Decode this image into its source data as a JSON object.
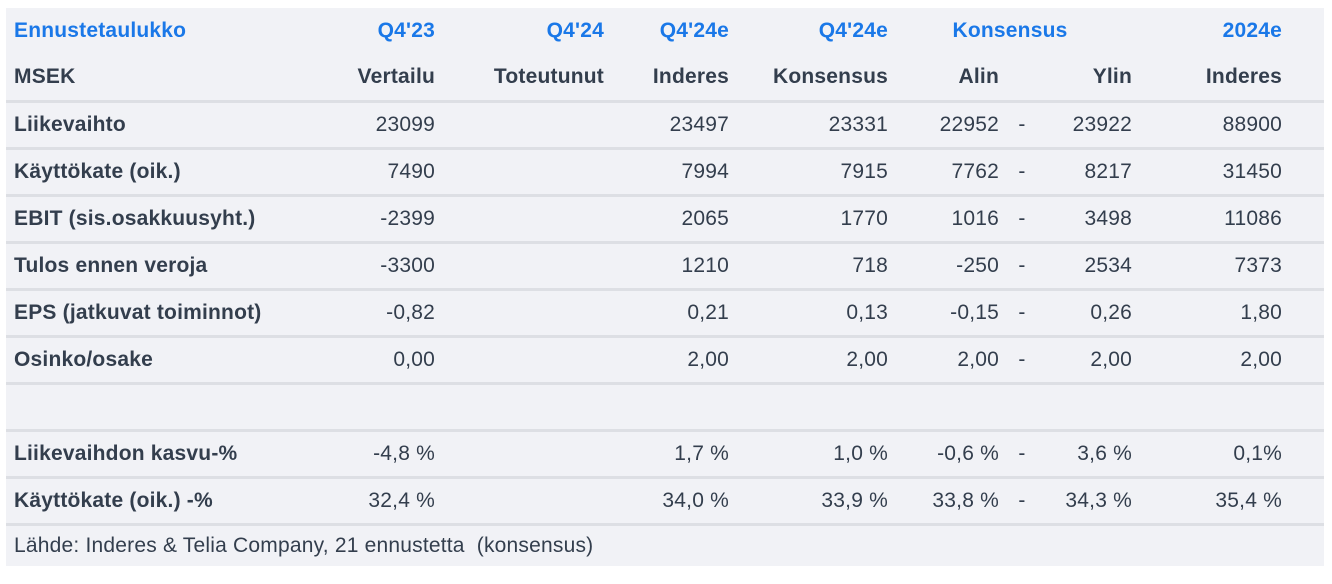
{
  "colors": {
    "accent_blue": "#1a78e8",
    "text_dark": "#333e4d",
    "row_bg": "#f1f2f6",
    "separator_gray": "#dddfe4",
    "page_bg": "#ffffff"
  },
  "header": {
    "title": "Ennustetaulukko",
    "unit_label": "MSEK",
    "period_row": {
      "vertailu": "Q4'23",
      "toteutunut": "Q4'24",
      "inderes": "Q4'24e",
      "konsensus": "Q4'24e",
      "konsensus_span": "Konsensus",
      "year": "2024e"
    },
    "source_row": {
      "vertailu": "Vertailu",
      "toteutunut": "Toteutunut",
      "inderes": "Inderes",
      "konsensus": "Konsensus",
      "alin": "Alin",
      "ylin": "Ylin",
      "year": "Inderes"
    }
  },
  "rows": [
    {
      "label": "Liikevaihto",
      "cells": [
        "23099",
        "",
        "23497",
        "23331",
        "22952",
        "-",
        "23922",
        "88900"
      ]
    },
    {
      "label": "Käyttökate (oik.)",
      "cells": [
        "7490",
        "",
        "7994",
        "7915",
        "7762",
        "-",
        "8217",
        "31450"
      ]
    },
    {
      "label": "EBIT (sis.osakkuusyht.)",
      "cells": [
        "-2399",
        "",
        "2065",
        "1770",
        "1016",
        "-",
        "3498",
        "11086"
      ]
    },
    {
      "label": "Tulos ennen veroja",
      "cells": [
        "-3300",
        "",
        "1210",
        "718",
        "-250",
        "-",
        "2534",
        "7373"
      ]
    },
    {
      "label": "EPS (jatkuvat toiminnot)",
      "cells": [
        "-0,82",
        "",
        "0,21",
        "0,13",
        "-0,15",
        "-",
        "0,26",
        "1,80"
      ]
    },
    {
      "label": "Osinko/osake",
      "cells": [
        "0,00",
        "",
        "2,00",
        "2,00",
        "2,00",
        "-",
        "2,00",
        "2,00"
      ]
    },
    {
      "spacer": true
    },
    {
      "label": "Liikevaihdon kasvu-%",
      "cells": [
        "-4,8 %",
        "",
        "1,7 %",
        "1,0 %",
        "-0,6 %",
        "-",
        "3,6 %",
        "0,1%"
      ]
    },
    {
      "label": "Käyttökate (oik.) -%",
      "cells": [
        "32,4 %",
        "",
        "34,0 %",
        "33,9 %",
        "33,8 %",
        "-",
        "34,3 %",
        "35,4 %"
      ]
    }
  ],
  "footer": {
    "source_text": "Lähde: Inderes & Telia Company, 21 ennustetta  (konsensus)"
  }
}
